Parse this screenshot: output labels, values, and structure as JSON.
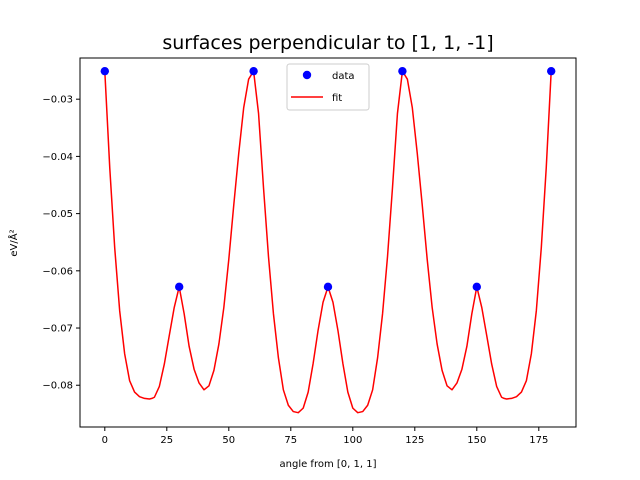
{
  "chart_data": {
    "type": "scatter",
    "title": "surfaces perpendicular to [1, 1, -1]",
    "xlabel": "angle from [0, 1, 1]",
    "ylabel": "eV/Å²",
    "xlim": [
      -10,
      190
    ],
    "ylim": [
      -0.0873,
      -0.0228
    ],
    "xticks": [
      0,
      25,
      50,
      75,
      100,
      125,
      150,
      175
    ],
    "yticks": [
      -0.03,
      -0.04,
      -0.05,
      -0.06,
      -0.07,
      -0.08
    ],
    "ytick_labels": [
      "−0.03",
      "−0.04",
      "−0.05",
      "−0.06",
      "−0.07",
      "−0.08"
    ],
    "grid": false,
    "legend_position": "top-center",
    "series": [
      {
        "name": "data",
        "kind": "scatter",
        "color": "#0000ff",
        "x": [
          0,
          30,
          60,
          90,
          120,
          150,
          180
        ],
        "y": [
          -0.0251,
          -0.0628,
          -0.0251,
          -0.0628,
          -0.0251,
          -0.0628,
          -0.0251
        ]
      },
      {
        "name": "fit",
        "kind": "line",
        "color": "#ff0000",
        "x": [
          0,
          2,
          4,
          6,
          8,
          10,
          12,
          14,
          16,
          18,
          19,
          20,
          22,
          24,
          26,
          28,
          30,
          32,
          34,
          36,
          38,
          40,
          42,
          44,
          46,
          48,
          50,
          52,
          54,
          56,
          58,
          60,
          62,
          64,
          66,
          68,
          70,
          72,
          74,
          76,
          78,
          80,
          82,
          84,
          86,
          88,
          90,
          92,
          94,
          96,
          98,
          100,
          102,
          104,
          106,
          108,
          110,
          112,
          114,
          116,
          118,
          120,
          122,
          124,
          126,
          128,
          130,
          132,
          134,
          136,
          138,
          140,
          142,
          144,
          146,
          148,
          150,
          152,
          154,
          156,
          158,
          160,
          161,
          162,
          164,
          166,
          168,
          170,
          172,
          174,
          176,
          178,
          180
        ],
        "y": [
          -0.0251,
          -0.042,
          -0.056,
          -0.067,
          -0.0745,
          -0.0792,
          -0.0812,
          -0.082,
          -0.0823,
          -0.0824,
          -0.0823,
          -0.0821,
          -0.0802,
          -0.0763,
          -0.0713,
          -0.0664,
          -0.0628,
          -0.0675,
          -0.0732,
          -0.0772,
          -0.0796,
          -0.0808,
          -0.0801,
          -0.0774,
          -0.0728,
          -0.0664,
          -0.058,
          -0.0485,
          -0.0395,
          -0.0315,
          -0.0265,
          -0.0251,
          -0.0325,
          -0.0455,
          -0.0575,
          -0.0675,
          -0.0752,
          -0.0808,
          -0.0835,
          -0.0846,
          -0.0848,
          -0.084,
          -0.0812,
          -0.0762,
          -0.0704,
          -0.0655,
          -0.0628,
          -0.0655,
          -0.0704,
          -0.0762,
          -0.0812,
          -0.084,
          -0.0848,
          -0.0846,
          -0.0835,
          -0.0808,
          -0.0752,
          -0.0675,
          -0.0575,
          -0.0455,
          -0.0325,
          -0.0251,
          -0.0265,
          -0.0315,
          -0.0395,
          -0.0485,
          -0.058,
          -0.0664,
          -0.0728,
          -0.0774,
          -0.0801,
          -0.0808,
          -0.0796,
          -0.0772,
          -0.0732,
          -0.0675,
          -0.0628,
          -0.0664,
          -0.0713,
          -0.0763,
          -0.0802,
          -0.0821,
          -0.0823,
          -0.0824,
          -0.0823,
          -0.082,
          -0.0812,
          -0.0792,
          -0.0745,
          -0.067,
          -0.056,
          -0.042,
          -0.0251
        ]
      }
    ]
  }
}
